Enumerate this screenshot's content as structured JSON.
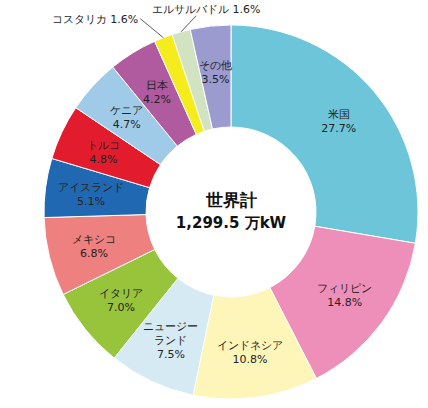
{
  "chart_data": {
    "type": "pie",
    "donut": true,
    "center_title": "世界計",
    "total": {
      "value": 1299.5,
      "label": "1,299.5 万kW"
    },
    "categories": [
      "米国",
      "フィリピン",
      "インドネシア",
      "ニュージーランド",
      "イタリア",
      "メキシコ",
      "アイスランド",
      "トルコ",
      "ケニア",
      "日本",
      "コスタリカ",
      "エルサルバドル",
      "その他"
    ],
    "values": [
      27.7,
      14.8,
      10.8,
      7.5,
      7.0,
      6.8,
      5.1,
      4.8,
      4.7,
      4.2,
      1.6,
      1.6,
      3.5
    ],
    "value_labels": [
      "27.7%",
      "14.8%",
      "10.8%",
      "7.5%",
      "7.0%",
      "6.8%",
      "5.1%",
      "4.8%",
      "4.7%",
      "4.2%",
      "1.6%",
      "1.6%",
      "3.5%"
    ],
    "colors": [
      "#6cc5d9",
      "#ee8fb9",
      "#fdf6b8",
      "#d5eaf2",
      "#97c43a",
      "#ef8080",
      "#2168b3",
      "#e21c2c",
      "#9fcbe9",
      "#b05a9f",
      "#f5ec1d",
      "#d1e3c1",
      "#9b9bd0"
    ],
    "data_labels": true,
    "legend": false
  }
}
